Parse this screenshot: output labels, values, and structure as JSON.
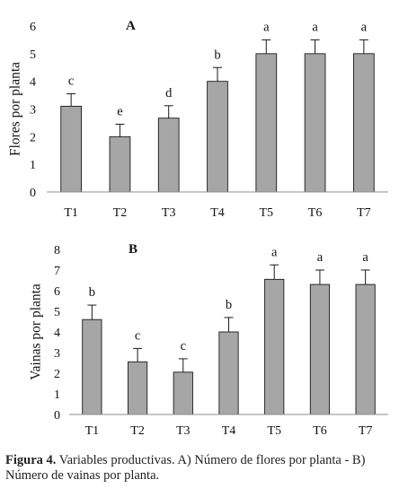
{
  "chart_data": [
    {
      "type": "bar",
      "title": "A",
      "ylabel": "Flores por planta",
      "categories": [
        "T1",
        "T2",
        "T3",
        "T4",
        "T5",
        "T6",
        "T7"
      ],
      "values": [
        3.1,
        2.0,
        2.67,
        4.0,
        5.0,
        5.0,
        5.0
      ],
      "errors": [
        0.45,
        0.45,
        0.45,
        0.5,
        0.5,
        0.5,
        0.5
      ],
      "letters": [
        "c",
        "e",
        "d",
        "b",
        "a",
        "a",
        "a"
      ],
      "ylim": [
        0,
        6
      ],
      "yticks": [
        0,
        1,
        2,
        3,
        4,
        5,
        6
      ],
      "bar_color": "#a6a6a6",
      "grid": false
    },
    {
      "type": "bar",
      "title": "B",
      "ylabel": "Vainas por planta",
      "categories": [
        "T1",
        "T2",
        "T3",
        "T4",
        "T5",
        "T6",
        "T7"
      ],
      "values": [
        4.6,
        2.55,
        2.05,
        4.0,
        6.55,
        6.3,
        6.3
      ],
      "errors": [
        0.7,
        0.65,
        0.65,
        0.7,
        0.7,
        0.7,
        0.7
      ],
      "letters": [
        "b",
        "c",
        "c",
        "b",
        "a",
        "a",
        "a"
      ],
      "ylim": [
        0,
        8
      ],
      "yticks": [
        0,
        1,
        2,
        3,
        4,
        5,
        6,
        7,
        8
      ],
      "bar_color": "#a6a6a6",
      "grid": false
    }
  ],
  "caption": {
    "label": "Figura 4.",
    "text": " Variables productivas. A) Número de flores por planta - B) Número de vainas por planta."
  }
}
